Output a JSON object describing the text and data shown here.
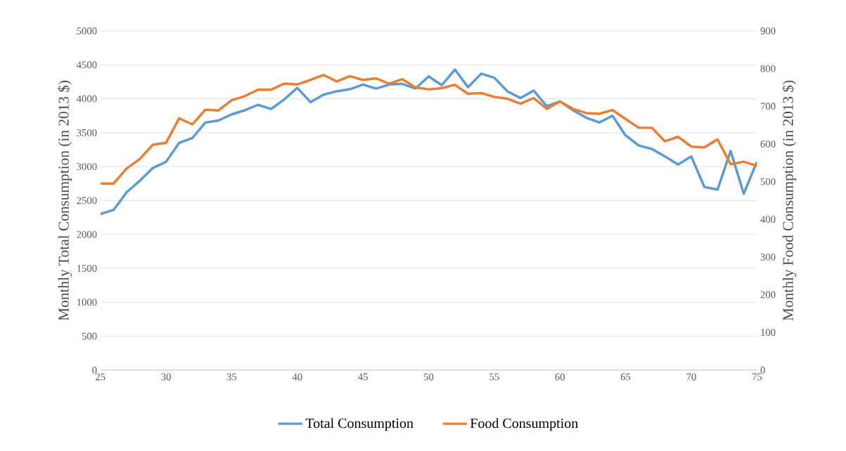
{
  "chart_data": {
    "type": "line",
    "ylabel": "Monthly Total Consumption (in 2013 $)",
    "y2label": "Monthly Food Consumption (in 2013 $)",
    "x": [
      25,
      26,
      27,
      28,
      29,
      30,
      31,
      32,
      33,
      34,
      35,
      36,
      37,
      38,
      39,
      40,
      41,
      42,
      43,
      44,
      45,
      46,
      47,
      48,
      49,
      50,
      51,
      52,
      53,
      54,
      55,
      56,
      57,
      58,
      59,
      60,
      61,
      62,
      63,
      64,
      65,
      66,
      67,
      68,
      69,
      70,
      71,
      72,
      73,
      74,
      75
    ],
    "series": [
      {
        "name": "Total Consumption",
        "color": "#5b9bd5",
        "values": [
          2300,
          2360,
          2620,
          2790,
          2980,
          3070,
          3350,
          3420,
          3650,
          3680,
          3770,
          3830,
          3910,
          3850,
          3990,
          4160,
          3950,
          4060,
          4110,
          4140,
          4210,
          4150,
          4210,
          4220,
          4150,
          4330,
          4200,
          4430,
          4170,
          4370,
          4310,
          4110,
          4010,
          4120,
          3890,
          3960,
          3830,
          3720,
          3650,
          3750,
          3460,
          3310,
          3260,
          3150,
          3030,
          3150,
          2700,
          2660,
          3230,
          2600,
          3070
        ]
      },
      {
        "name": "Food Consumption",
        "color": "#ed7d31",
        "axis": "y2",
        "values": [
          495,
          495,
          535,
          560,
          598,
          603,
          668,
          652,
          691,
          689,
          716,
          727,
          744,
          744,
          760,
          758,
          770,
          783,
          766,
          780,
          770,
          774,
          760,
          772,
          750,
          745,
          748,
          757,
          733,
          735,
          725,
          720,
          707,
          722,
          693,
          713,
          693,
          682,
          680,
          690,
          666,
          643,
          643,
          607,
          619,
          593,
          591,
          612,
          546,
          553,
          542
        ]
      }
    ],
    "xlim": [
      25,
      75
    ],
    "xticks": [
      25,
      30,
      35,
      40,
      45,
      50,
      55,
      60,
      65,
      70,
      75
    ],
    "ylim": [
      0,
      5000
    ],
    "yticks": [
      0,
      500,
      1000,
      1500,
      2000,
      2500,
      3000,
      3500,
      4000,
      4500,
      5000
    ],
    "y2lim": [
      0,
      900
    ],
    "y2ticks": [
      0,
      100,
      200,
      300,
      400,
      500,
      600,
      700,
      800,
      900
    ],
    "grid": "y",
    "legend": "bottom",
    "marker": "none",
    "line_style": "solid"
  }
}
